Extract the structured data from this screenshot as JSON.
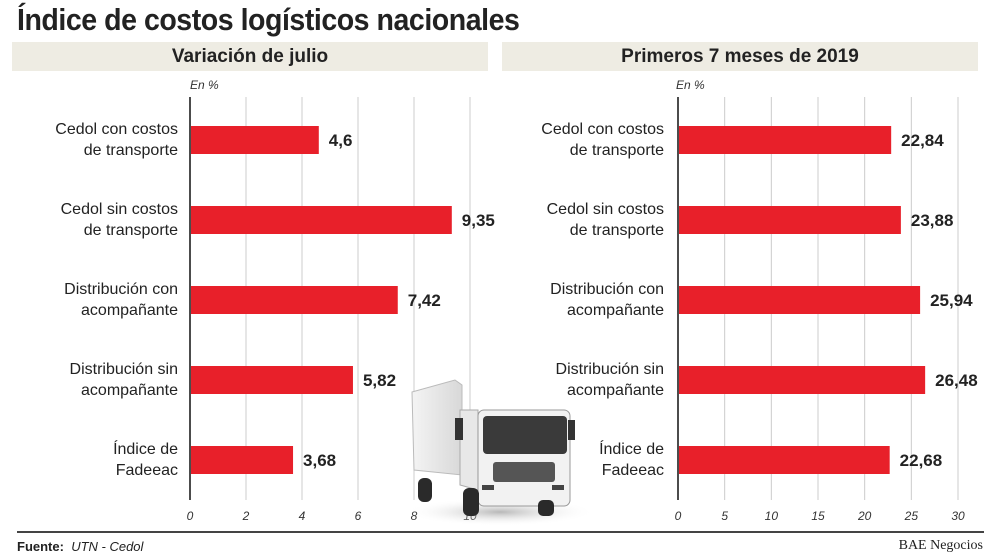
{
  "title": "Índice de costos logísticos nacionales",
  "source_label": "Fuente:",
  "source_value": "UTN - Cedol",
  "brand": "BAE Negocios",
  "bar_color": "#e8202a",
  "chart_data": [
    {
      "type": "bar",
      "orientation": "horizontal",
      "title": "Variación de julio",
      "unit_label": "En %",
      "categories": [
        [
          "Cedol con costos",
          "de transporte"
        ],
        [
          "Cedol sin costos",
          "de transporte"
        ],
        [
          "Distribución con",
          "acompañante"
        ],
        [
          "Distribución sin",
          "acompañante"
        ],
        [
          "Índice de",
          "Fadeeac"
        ]
      ],
      "values": [
        4.6,
        9.35,
        7.42,
        5.82,
        3.68
      ],
      "value_labels": [
        "4,6",
        "9,35",
        "7,42",
        "5,82",
        "3,68"
      ],
      "xlim": [
        0,
        10
      ],
      "ticks": [
        "0",
        "2",
        "4",
        "6",
        "8",
        "10"
      ],
      "grid": true
    },
    {
      "type": "bar",
      "orientation": "horizontal",
      "title": "Primeros 7 meses de 2019",
      "unit_label": "En %",
      "categories": [
        [
          "Cedol con costos",
          "de transporte"
        ],
        [
          "Cedol sin costos",
          "de transporte"
        ],
        [
          "Distribución con",
          "acompañante"
        ],
        [
          "Distribución sin",
          "acompañante"
        ],
        [
          "Índice de",
          "Fadeeac"
        ]
      ],
      "values": [
        22.84,
        23.88,
        25.94,
        26.48,
        22.68
      ],
      "value_labels": [
        "22,84",
        "23,88",
        "25,94",
        "26,48",
        "22,68"
      ],
      "xlim": [
        0,
        30
      ],
      "ticks": [
        "0",
        "5",
        "10",
        "15",
        "20",
        "25",
        "30"
      ],
      "grid": true
    }
  ]
}
